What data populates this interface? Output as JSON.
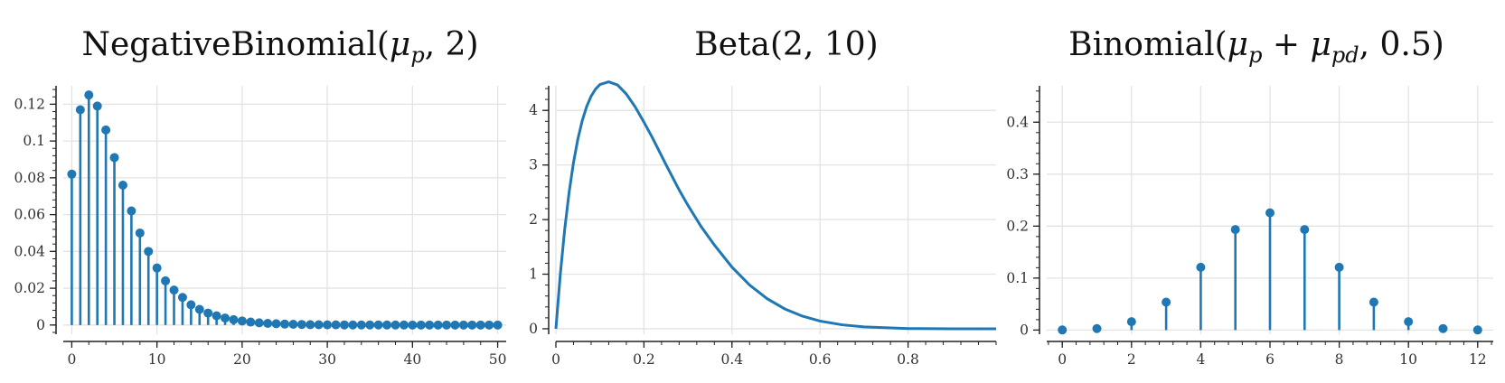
{
  "colors": {
    "series": "#1f77b4",
    "grid": "#e3e3e3",
    "axis": "#222222"
  },
  "chart_data": [
    {
      "type": "stem",
      "title": "NegativeBinomial(μp, 2)",
      "title_parts": [
        "NegativeBinomial(",
        "μ",
        "p",
        ", 2)"
      ],
      "xlim": [
        -1,
        51
      ],
      "ylim": [
        -0.005,
        0.13
      ],
      "xticks": [
        0,
        10,
        20,
        30,
        40,
        50
      ],
      "xtick_labels": [
        "0",
        "10",
        "20",
        "30",
        "40",
        "50"
      ],
      "yticks": [
        0,
        0.02,
        0.04,
        0.06,
        0.08,
        0.1,
        0.12
      ],
      "ytick_labels": [
        "0",
        "0.02",
        "0.04",
        "0.06",
        "0.08",
        "0.1",
        "0.12"
      ],
      "grid": true,
      "x": [
        0,
        1,
        2,
        3,
        4,
        5,
        6,
        7,
        8,
        9,
        10,
        11,
        12,
        13,
        14,
        15,
        16,
        17,
        18,
        19,
        20,
        21,
        22,
        23,
        24,
        25,
        26,
        27,
        28,
        29,
        30,
        31,
        32,
        33,
        34,
        35,
        36,
        37,
        38,
        39,
        40,
        41,
        42,
        43,
        44,
        45,
        46,
        47,
        48,
        49,
        50
      ],
      "values": [
        0.082,
        0.117,
        0.125,
        0.119,
        0.106,
        0.091,
        0.076,
        0.062,
        0.05,
        0.04,
        0.031,
        0.024,
        0.019,
        0.015,
        0.011,
        0.0085,
        0.0065,
        0.005,
        0.0038,
        0.0029,
        0.0022,
        0.0016,
        0.0012,
        0.0009,
        0.0007,
        0.0005,
        0.0004,
        0.0003,
        0.0002,
        0.00015,
        0.0001,
        8e-05,
        6e-05,
        4e-05,
        3e-05,
        2e-05,
        2e-05,
        1e-05,
        1e-05,
        1e-05,
        0,
        0,
        0,
        0,
        0,
        0,
        0,
        0,
        0,
        0,
        0
      ]
    },
    {
      "type": "line",
      "title": "Beta(2, 10)",
      "title_parts": [
        "Beta(2, 10)"
      ],
      "xlim": [
        0,
        1
      ],
      "ylim": [
        -0.1,
        4.45
      ],
      "xticks": [
        0,
        0.2,
        0.4,
        0.6,
        0.8
      ],
      "xtick_labels": [
        "0",
        "0.2",
        "0.4",
        "0.6",
        "0.8"
      ],
      "yticks": [
        0,
        1,
        2,
        3,
        4
      ],
      "ytick_labels": [
        "0",
        "1",
        "2",
        "3",
        "4"
      ],
      "grid": true,
      "x": [
        0,
        0.01,
        0.02,
        0.03,
        0.04,
        0.05,
        0.06,
        0.07,
        0.08,
        0.09,
        0.1,
        0.12,
        0.14,
        0.16,
        0.18,
        0.2,
        0.22,
        0.25,
        0.28,
        0.3,
        0.33,
        0.36,
        0.4,
        0.44,
        0.48,
        0.52,
        0.56,
        0.6,
        0.65,
        0.7,
        0.8,
        0.9,
        1.0
      ],
      "y": [
        0,
        0.9963,
        1.8222,
        2.4985,
        3.0449,
        3.4788,
        3.8164,
        4.0723,
        4.2595,
        4.3896,
        4.4737,
        4.5224,
        4.4658,
        4.2987,
        4.0652,
        3.7849,
        3.4877,
        3.0078,
        2.543,
        2.2606,
        1.871,
        1.5347,
        1.1286,
        0.8018,
        0.5501,
        0.3636,
        0.2311,
        0.1409,
        0.0728,
        0.034,
        0.0042,
        0.0001,
        0
      ]
    },
    {
      "type": "stem",
      "title": "Binomial(μp + μpd, 0.5)",
      "title_parts": [
        "Binomial(",
        "μ",
        "p",
        " + ",
        "μ",
        "pd",
        ", 0.5)"
      ],
      "xlim": [
        -0.45,
        12.45
      ],
      "ylim": [
        -0.008,
        0.47
      ],
      "xticks": [
        0,
        2,
        4,
        6,
        8,
        10,
        12
      ],
      "xtick_labels": [
        "0",
        "2",
        "4",
        "6",
        "8",
        "10",
        "12"
      ],
      "yticks": [
        0,
        0.1,
        0.2,
        0.3,
        0.4
      ],
      "ytick_labels": [
        "0",
        "0.1",
        "0.2",
        "0.3",
        "0.4"
      ],
      "grid": true,
      "x": [
        0,
        1,
        2,
        3,
        4,
        5,
        6,
        7,
        8,
        9,
        10,
        11,
        12
      ],
      "values": [
        0.0002,
        0.0029,
        0.0161,
        0.0537,
        0.1208,
        0.1934,
        0.2256,
        0.1934,
        0.1208,
        0.0537,
        0.0161,
        0.0029,
        0.0002
      ]
    }
  ]
}
